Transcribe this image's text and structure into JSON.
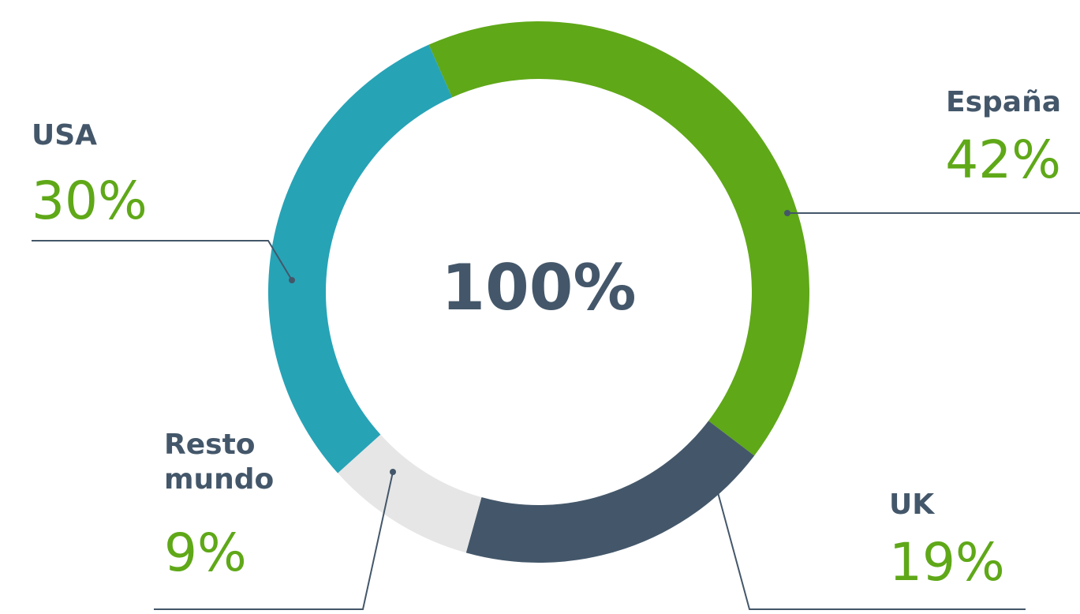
{
  "chart_data": {
    "type": "pie",
    "donut": true,
    "center_label": "100%",
    "categories": [
      "España",
      "UK",
      "Resto mundo",
      "USA"
    ],
    "values": [
      42,
      19,
      9,
      30
    ],
    "value_labels": [
      "42%",
      "19%",
      "9%",
      "30%"
    ],
    "colors": [
      "#5fa818",
      "#44576a",
      "#e6e6e6",
      "#27a3b6"
    ]
  }
}
